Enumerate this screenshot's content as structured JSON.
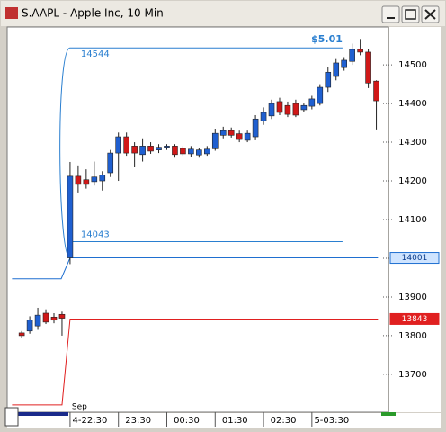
{
  "chart_data": {
    "type": "candlestick",
    "title": "S.AAPL - Apple Inc, 10 Min",
    "up_color": "#1f5fd0",
    "down_color": "#d01818",
    "ylim": [
      13602,
      14598
    ],
    "yticks": [
      13700,
      13800,
      13900,
      14000,
      14100,
      14200,
      14300,
      14400,
      14500
    ],
    "xlim": [
      -7.8,
      39.5
    ],
    "xticks": [
      {
        "value": 0,
        "label": "4-22:30"
      },
      {
        "value": 6,
        "label": "23:30"
      },
      {
        "value": 12,
        "label": "00:30"
      },
      {
        "value": 18,
        "label": "01:30"
      },
      {
        "value": 24,
        "label": "02:30"
      },
      {
        "value": 30,
        "label": "5-03:30"
      }
    ],
    "month_label": "Sep",
    "x": [
      -6,
      -5,
      -4,
      -3,
      -2,
      -1,
      0,
      1,
      2,
      3,
      4,
      5,
      6,
      7,
      8,
      9,
      10,
      11,
      12,
      13,
      14,
      15,
      16,
      17,
      18,
      19,
      20,
      21,
      22,
      23,
      24,
      25,
      26,
      27,
      28,
      29,
      30,
      31,
      32,
      33,
      34,
      35,
      36,
      37,
      38
    ],
    "open": [
      13807,
      13812,
      13825,
      13858,
      13848,
      13855,
      14001,
      14212,
      14203,
      14198,
      14200,
      14221,
      14272,
      14314,
      14290,
      14268,
      14290,
      14280,
      14287,
      14290,
      14284,
      14270,
      14267,
      14270,
      14283,
      14318,
      14330,
      14322,
      14305,
      14314,
      14355,
      14368,
      14405,
      14395,
      14400,
      14384,
      14393,
      14400,
      14442,
      14470,
      14493,
      14509,
      14540,
      14533,
      14458
    ],
    "high": [
      13812,
      13850,
      13872,
      13868,
      13858,
      13862,
      14249,
      14240,
      14230,
      14250,
      14225,
      14280,
      14325,
      14325,
      14300,
      14310,
      14300,
      14295,
      14295,
      14295,
      14290,
      14290,
      14285,
      14290,
      14335,
      14340,
      14338,
      14330,
      14330,
      14370,
      14390,
      14410,
      14415,
      14405,
      14410,
      14400,
      14420,
      14450,
      14495,
      14515,
      14520,
      14555,
      14567,
      14540,
      14460
    ],
    "low": [
      13793,
      13805,
      13815,
      13830,
      13832,
      13800,
      13985,
      14170,
      14180,
      14188,
      14175,
      14210,
      14200,
      14265,
      14235,
      14250,
      14270,
      14272,
      14280,
      14260,
      14265,
      14262,
      14260,
      14265,
      14278,
      14310,
      14312,
      14300,
      14300,
      14305,
      14345,
      14360,
      14370,
      14365,
      14365,
      14378,
      14385,
      14395,
      14430,
      14460,
      14485,
      14500,
      14525,
      14440,
      14333
    ],
    "close": [
      13800,
      13840,
      13853,
      13835,
      13840,
      13845,
      14212,
      14191,
      14191,
      14210,
      14215,
      14272,
      14314,
      14272,
      14272,
      14290,
      14277,
      14287,
      14290,
      14268,
      14270,
      14282,
      14280,
      14282,
      14323,
      14330,
      14318,
      14307,
      14323,
      14360,
      14377,
      14400,
      14377,
      14372,
      14370,
      14395,
      14412,
      14442,
      14481,
      14505,
      14512,
      14540,
      14533,
      14453,
      14407
    ],
    "levels": [
      {
        "value": 14001,
        "prior": 13947,
        "color": "#1f6fd0"
      },
      {
        "value": 13843,
        "prior": 13621,
        "color": "#e02020"
      }
    ],
    "range": {
      "high": 14544,
      "low": 14043,
      "text": "$5.01",
      "color": "#2a7fd0"
    }
  }
}
